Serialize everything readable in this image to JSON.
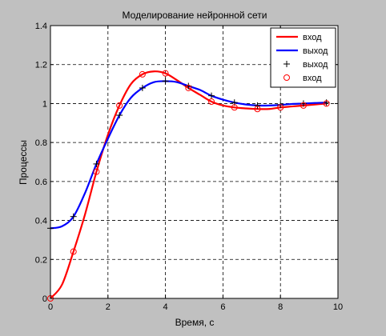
{
  "window": {
    "background": "#c0c0c0"
  },
  "chart_data": {
    "type": "line",
    "title": "Моделирование нейронной сети",
    "xlabel": "Время, с",
    "ylabel": "Процессы",
    "xlim": [
      0,
      10
    ],
    "ylim": [
      0,
      1.4
    ],
    "xticks": [
      0,
      2,
      4,
      6,
      8,
      10
    ],
    "yticks": [
      0,
      0.2,
      0.4,
      0.6,
      0.8,
      1,
      1.2,
      1.4
    ],
    "xtick_labels": [
      "0",
      "2",
      "4",
      "6",
      "8",
      "10"
    ],
    "ytick_labels": [
      "0",
      "0.2",
      "0.4",
      "0.6",
      "0.8",
      "1",
      "1.2",
      "1.4"
    ],
    "grid": true,
    "legend_position": "top-right",
    "series": [
      {
        "name": "вход",
        "style": "line",
        "color": "#ff0000",
        "x": [
          0,
          0.4,
          0.8,
          1.2,
          1.6,
          2.0,
          2.4,
          2.8,
          3.2,
          3.6,
          4.0,
          4.4,
          4.8,
          5.2,
          5.6,
          6.0,
          6.4,
          6.8,
          7.2,
          7.6,
          8.0,
          8.4,
          8.8,
          9.2,
          9.6
        ],
        "y": [
          0,
          0.07,
          0.24,
          0.43,
          0.65,
          0.84,
          0.99,
          1.1,
          1.15,
          1.165,
          1.155,
          1.12,
          1.08,
          1.045,
          1.01,
          0.99,
          0.98,
          0.975,
          0.972,
          0.972,
          0.98,
          0.985,
          0.99,
          0.995,
          1.0
        ]
      },
      {
        "name": "выход",
        "style": "line",
        "color": "#0000ff",
        "x": [
          0,
          0.4,
          0.8,
          1.2,
          1.6,
          2.0,
          2.4,
          2.8,
          3.2,
          3.6,
          4.0,
          4.4,
          4.8,
          5.2,
          5.6,
          6.0,
          6.4,
          6.8,
          7.2,
          7.6,
          8.0,
          8.4,
          8.8,
          9.2,
          9.6
        ],
        "y": [
          0.36,
          0.37,
          0.42,
          0.54,
          0.69,
          0.82,
          0.94,
          1.03,
          1.08,
          1.11,
          1.115,
          1.11,
          1.09,
          1.07,
          1.04,
          1.02,
          1.005,
          0.995,
          0.99,
          0.99,
          0.993,
          0.998,
          1.0,
          1.003,
          1.005
        ]
      },
      {
        "name": "выход",
        "style": "markers",
        "marker": "plus",
        "color": "#000000",
        "x": [
          0,
          0.8,
          1.6,
          2.4,
          3.2,
          4.0,
          4.8,
          5.6,
          6.4,
          7.2,
          8.0,
          8.8,
          9.6
        ],
        "y": [
          0.36,
          0.42,
          0.69,
          0.94,
          1.08,
          1.115,
          1.09,
          1.04,
          1.005,
          0.99,
          0.993,
          1.0,
          1.005
        ]
      },
      {
        "name": "вход",
        "style": "markers",
        "marker": "circle",
        "color": "#ff0000",
        "x": [
          0,
          0.8,
          1.6,
          2.4,
          3.2,
          4.0,
          4.8,
          5.6,
          6.4,
          7.2,
          8.0,
          8.8,
          9.6
        ],
        "y": [
          0,
          0.24,
          0.65,
          0.99,
          1.15,
          1.155,
          1.08,
          1.01,
          0.98,
          0.972,
          0.98,
          0.99,
          1.0
        ]
      }
    ]
  }
}
